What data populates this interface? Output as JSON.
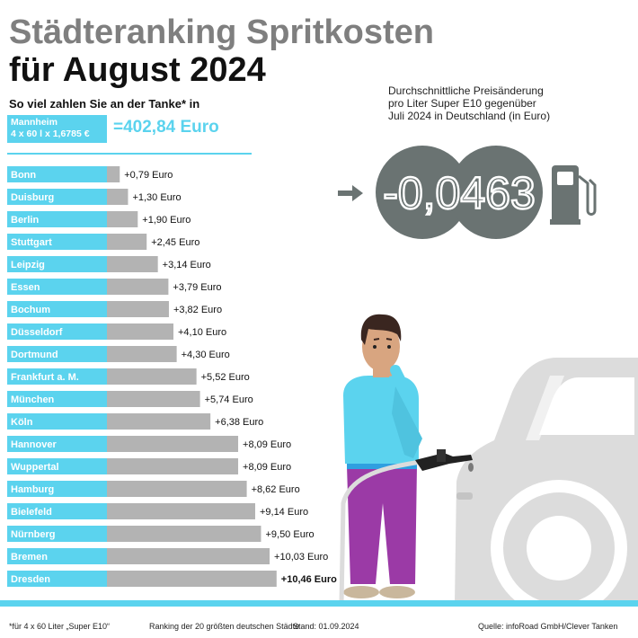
{
  "header": {
    "title_line1": "Städteranking Spritkosten",
    "title_line2": "für August 2024",
    "subtitle": "So viel zahlen Sie an der Tanke* in"
  },
  "baseline": {
    "city": "Mannheim",
    "calculation": "4 x 60 l x 1,6785 €",
    "total": "=402,84 Euro"
  },
  "chart_data": {
    "type": "bar",
    "orientation": "horizontal",
    "categories": [
      "Bonn",
      "Duisburg",
      "Berlin",
      "Stuttgart",
      "Leipzig",
      "Essen",
      "Bochum",
      "Düsseldorf",
      "Dortmund",
      "Frankfurt a. M.",
      "München",
      "Köln",
      "Hannover",
      "Wuppertal",
      "Hamburg",
      "Bielefeld",
      "Nürnberg",
      "Bremen",
      "Dresden"
    ],
    "values": [
      0.79,
      1.3,
      1.9,
      2.45,
      3.14,
      3.79,
      3.82,
      4.1,
      4.3,
      5.52,
      5.74,
      6.38,
      8.09,
      8.09,
      8.62,
      9.14,
      9.5,
      10.03,
      10.46
    ],
    "value_labels": [
      "+0,79 Euro",
      "+1,30 Euro",
      "+1,90 Euro",
      "+2,45 Euro",
      "+3,14 Euro",
      "+3,79 Euro",
      "+3,82 Euro",
      "+4,10 Euro",
      "+4,30 Euro",
      "+5,52 Euro",
      "+5,74 Euro",
      "+6,38 Euro",
      "+8,09 Euro",
      "+8,09 Euro",
      "+8,62 Euro",
      "+9,14 Euro",
      "+9,50 Euro",
      "+10,03 Euro",
      "+10,46 Euro"
    ],
    "highlight_last": true,
    "colors": {
      "label_box": "#5bd3ee",
      "bar": "#b3b3b3"
    }
  },
  "price_change": {
    "description_lines": [
      "Durchschnittliche Preisänderung",
      "pro Liter Super E10 gegenüber",
      "Juli 2024 in Deutschland (in Euro)"
    ],
    "value": "-0,0463"
  },
  "footer": {
    "note": "*für 4 x 60 Liter „Super E10“",
    "ranking": "Ranking der 20 größten deutschen Städte",
    "date": "Stand: 01.09.2024",
    "source": "Quelle: infoRoad GmbH/Clever Tanken"
  },
  "colors": {
    "accent": "#5bd3ee",
    "title_gray": "#7f7f7f",
    "bar_gray": "#b3b3b3",
    "display_gray": "#6a7372"
  },
  "icons": [
    "arrow-right-icon",
    "fuel-pump-icon",
    "person-illustration",
    "car-illustration",
    "fuel-nozzle-icon"
  ]
}
